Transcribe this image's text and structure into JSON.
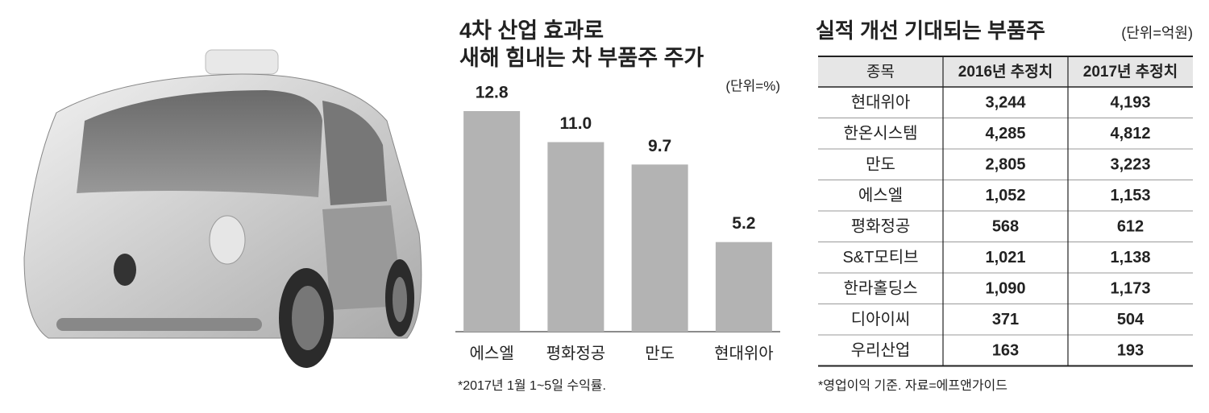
{
  "chart_data": {
    "type": "bar",
    "title": [
      "4차 산업 효과로",
      "새해 힘내는 차 부품주 주가"
    ],
    "unit": "(단위=%)",
    "note": "*2017년 1월 1~5일 수익률.",
    "categories": [
      "에스엘",
      "평화정공",
      "만도",
      "현대위아"
    ],
    "values": [
      12.8,
      11.0,
      9.7,
      5.2
    ],
    "value_labels": [
      "12.8",
      "11.0",
      "9.7",
      "5.2"
    ],
    "color": "#b3b3b3"
  },
  "table": {
    "title": "실적 개선 기대되는 부품주",
    "unit": "(단위=억원)",
    "header": [
      "종목",
      "2016년 추정치",
      "2017년 추정치"
    ],
    "rows": [
      [
        "현대위아",
        "3,244",
        "4,193"
      ],
      [
        "한온시스템",
        "4,285",
        "4,812"
      ],
      [
        "만도",
        "2,805",
        "3,223"
      ],
      [
        "에스엘",
        "1,052",
        "1,153"
      ],
      [
        "평화정공",
        "568",
        "612"
      ],
      [
        "S&T모티브",
        "1,021",
        "1,138"
      ],
      [
        "한라홀딩스",
        "1,090",
        "1,173"
      ],
      [
        "디아이씨",
        "371",
        "504"
      ],
      [
        "우리산업",
        "163",
        "193"
      ]
    ],
    "note": "*영업이익 기준. 자료=에프앤가이드"
  }
}
